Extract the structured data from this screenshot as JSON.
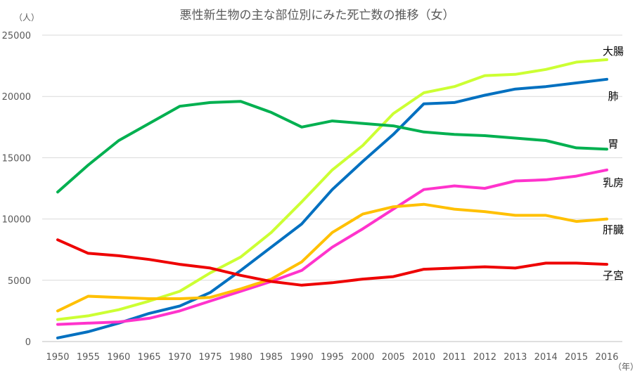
{
  "chart_data": {
    "type": "line",
    "title": "悪性新生物の主な部位別にみた死亡数の推移（女）",
    "ylabel": "（人）",
    "xlabel": "（年）",
    "ylim": [
      0,
      25000
    ],
    "yticks": [
      0,
      5000,
      10000,
      15000,
      20000,
      25000
    ],
    "grid": true,
    "legend": "labels at line ends (right)",
    "categories": [
      "1950",
      "1955",
      "1960",
      "1965",
      "1970",
      "1975",
      "1980",
      "1985",
      "1990",
      "1995",
      "2000",
      "2005",
      "2010",
      "2011",
      "2012",
      "2013",
      "2014",
      "2015",
      "2016"
    ],
    "series": [
      {
        "name": "大腸",
        "color": "#ccff33",
        "values": [
          1800,
          2100,
          2600,
          3300,
          4100,
          5600,
          6900,
          8900,
          11400,
          14000,
          16000,
          18600,
          20300,
          20800,
          21700,
          21800,
          22200,
          22800,
          23000
        ]
      },
      {
        "name": "肺",
        "color": "#0070c0",
        "values": [
          300,
          800,
          1500,
          2300,
          2900,
          4000,
          5800,
          7700,
          9600,
          12400,
          14700,
          16900,
          19400,
          19500,
          20100,
          20600,
          20800,
          21100,
          21400
        ]
      },
      {
        "name": "胃",
        "color": "#00b050",
        "values": [
          12200,
          14400,
          16400,
          17800,
          19200,
          19500,
          19600,
          18700,
          17500,
          18000,
          17800,
          17600,
          17100,
          16900,
          16800,
          16600,
          16400,
          15800,
          15700
        ]
      },
      {
        "name": "乳房",
        "color": "#ff33cc",
        "values": [
          1400,
          1500,
          1600,
          1900,
          2500,
          3300,
          4100,
          4900,
          5800,
          7700,
          9200,
          10800,
          12400,
          12700,
          12500,
          13100,
          13200,
          13500,
          14000
        ]
      },
      {
        "name": "肝臓",
        "color": "#ffc000",
        "values": [
          2500,
          3700,
          3600,
          3500,
          3500,
          3600,
          4300,
          5100,
          6500,
          8900,
          10400,
          11000,
          11200,
          10800,
          10600,
          10300,
          10300,
          9800,
          10000
        ]
      },
      {
        "name": "子宮",
        "color": "#ee0000",
        "values": [
          8300,
          7200,
          7000,
          6700,
          6300,
          6000,
          5400,
          4900,
          4600,
          4800,
          5100,
          5300,
          5900,
          6000,
          6100,
          6000,
          6400,
          6400,
          6300
        ]
      }
    ]
  }
}
